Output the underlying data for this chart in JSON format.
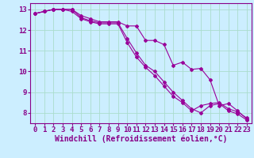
{
  "title": "",
  "xlabel": "Windchill (Refroidissement éolien,°C)",
  "ylabel": "",
  "bg_color": "#cceeff",
  "grid_color": "#aaddcc",
  "line_color": "#990099",
  "x": [
    0,
    1,
    2,
    3,
    4,
    5,
    6,
    7,
    8,
    9,
    10,
    11,
    12,
    13,
    14,
    15,
    16,
    17,
    18,
    19,
    20,
    21,
    22,
    23
  ],
  "line1": [
    12.8,
    12.9,
    13.0,
    13.0,
    13.0,
    12.7,
    12.55,
    12.4,
    12.4,
    12.4,
    12.2,
    12.2,
    11.5,
    11.5,
    11.3,
    10.3,
    10.45,
    10.1,
    10.15,
    9.6,
    8.35,
    8.45,
    8.1,
    7.7
  ],
  "line2": [
    12.8,
    12.9,
    13.0,
    13.0,
    13.0,
    12.6,
    12.45,
    12.35,
    12.35,
    12.35,
    11.6,
    10.9,
    10.3,
    10.0,
    9.5,
    9.0,
    8.6,
    8.2,
    8.0,
    8.35,
    8.45,
    8.1,
    7.95,
    7.65
  ],
  "line3": [
    12.8,
    12.9,
    13.0,
    13.0,
    12.9,
    12.55,
    12.4,
    12.3,
    12.3,
    12.3,
    11.4,
    10.7,
    10.2,
    9.8,
    9.3,
    8.8,
    8.5,
    8.1,
    8.35,
    8.45,
    8.5,
    8.2,
    8.05,
    7.75
  ],
  "ylim": [
    7.5,
    13.3
  ],
  "xlim": [
    -0.5,
    23.5
  ],
  "yticks": [
    8,
    9,
    10,
    11,
    12,
    13
  ],
  "xticks": [
    0,
    1,
    2,
    3,
    4,
    5,
    6,
    7,
    8,
    9,
    10,
    11,
    12,
    13,
    14,
    15,
    16,
    17,
    18,
    19,
    20,
    21,
    22,
    23
  ],
  "font_color": "#880088",
  "xlabel_fontsize": 7.0,
  "tick_fontsize": 6.5,
  "marker": "D",
  "marker_size": 2.0,
  "linewidth": 0.8
}
